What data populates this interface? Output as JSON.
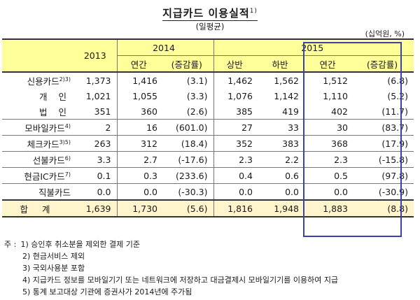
{
  "title": "지급카드 이용실적",
  "title_sup": "1)",
  "subtitle": "(일평균)",
  "unit": "(십억원, %)",
  "header": {
    "y2013": "2013",
    "y2014": "2014",
    "y2015": "2015",
    "annual": "연간",
    "change": "(증감률)",
    "h1": "상반",
    "h2": "하반",
    "annual2": "연간",
    "change2": "(증감률)"
  },
  "rows": [
    {
      "label": "신용카드",
      "sup": "2)3)",
      "v2013": "1,373",
      "a2014": "1,416",
      "c2014": "(3.1)",
      "h1": "1,462",
      "h2": "1,562",
      "a2015": "1,512",
      "c2015": "(6.8)"
    },
    {
      "label": "개  인",
      "sup": "",
      "v2013": "1,021",
      "a2014": "1,055",
      "c2014": "(3.3)",
      "h1": "1,076",
      "h2": "1,142",
      "a2015": "1,110",
      "c2015": "(5.2)"
    },
    {
      "label": "법  인",
      "sup": "",
      "v2013": "351",
      "a2014": "360",
      "c2014": "(2.6)",
      "h1": "385",
      "h2": "419",
      "a2015": "402",
      "c2015": "(11.7)"
    },
    {
      "label": "모바일카드",
      "sup": "4)",
      "v2013": "2",
      "a2014": "16",
      "c2014": "(601.0)",
      "h1": "27",
      "h2": "33",
      "a2015": "30",
      "c2015": "(83.7)"
    },
    {
      "label": "체크카드",
      "sup": "3)5)",
      "v2013": "263",
      "a2014": "312",
      "c2014": "(18.4)",
      "h1": "352",
      "h2": "383",
      "a2015": "368",
      "c2015": "(17.9)"
    },
    {
      "label": "선불카드",
      "sup": "6)",
      "v2013": "3.3",
      "a2014": "2.7",
      "c2014": "(-17.6)",
      "h1": "2.3",
      "h2": "2.2",
      "a2015": "2.3",
      "c2015": "(-15.8)"
    },
    {
      "label": "현금IC카드",
      "sup": "7)",
      "v2013": "0.1",
      "a2014": "0.3",
      "c2014": "(233.6)",
      "h1": "0.4",
      "h2": "0.6",
      "a2015": "0.5",
      "c2015": "(97.8)"
    },
    {
      "label": "직불카드",
      "sup": "",
      "v2013": "0.0",
      "a2014": "0.0",
      "c2014": "(-30.3)",
      "h1": "0.0",
      "h2": "0.0",
      "a2015": "0.0",
      "c2015": "(-30.9)"
    },
    {
      "label": "합  계",
      "sup": "",
      "v2013": "1,639",
      "a2014": "1,730",
      "c2014": "(5.6)",
      "h1": "1,816",
      "h2": "1,948",
      "a2015": "1,883",
      "c2015": "(8.8)"
    }
  ],
  "notes": {
    "prefix": "주 :",
    "n1": "1) 승인후 취소분을 제외한 결제 기준",
    "n2": "2) 현금서비스 제외",
    "n3": "3) 국외사용분 포함",
    "n4": "4) 지급카드 정보를 모바일기기 또는 네트워크에 저장하고 대금결제시 모바일기기를 이용하여 지급",
    "n5": "5) 통계 보고대상 기관에 증권사가 2014년에 주가됨"
  }
}
